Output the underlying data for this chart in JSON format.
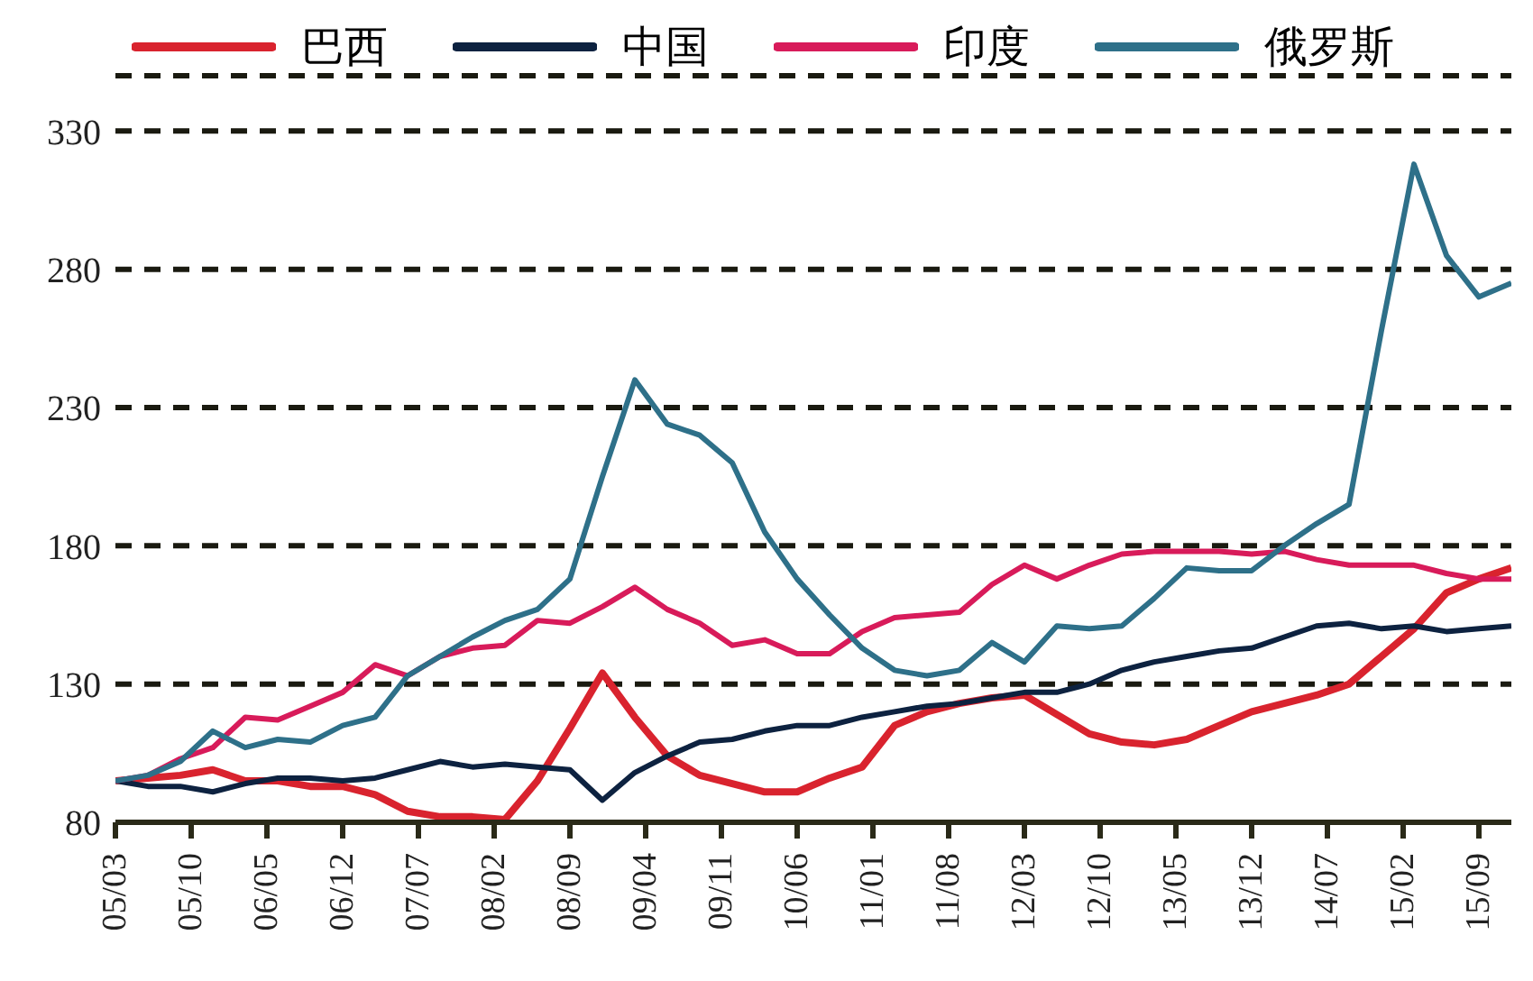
{
  "chart_data": {
    "type": "line",
    "legend": "top",
    "grid": "y",
    "marker": "none",
    "line_style": "solid",
    "x": [
      "2005-03",
      "2005-06",
      "2005-09",
      "2005-12",
      "2006-03",
      "2006-06",
      "2006-09",
      "2006-12",
      "2007-03",
      "2007-06",
      "2007-09",
      "2007-12",
      "2008-03",
      "2008-06",
      "2008-09",
      "2008-12",
      "2009-03",
      "2009-06",
      "2009-09",
      "2009-12",
      "2010-03",
      "2010-06",
      "2010-09",
      "2010-12",
      "2011-03",
      "2011-06",
      "2011-09",
      "2011-12",
      "2012-03",
      "2012-06",
      "2012-09",
      "2012-12",
      "2013-03",
      "2013-06",
      "2013-09",
      "2013-12",
      "2014-03",
      "2014-06",
      "2014-09",
      "2014-12",
      "2015-03",
      "2015-06",
      "2015-09",
      "2015-12"
    ],
    "xlim": [
      "2005-03",
      "2015-12"
    ],
    "xticks": [
      {
        "value": "2005-03",
        "label": "05/03"
      },
      {
        "value": "2005-10",
        "label": "05/10"
      },
      {
        "value": "2006-05",
        "label": "06/05"
      },
      {
        "value": "2006-12",
        "label": "06/12"
      },
      {
        "value": "2007-07",
        "label": "07/07"
      },
      {
        "value": "2008-02",
        "label": "08/02"
      },
      {
        "value": "2008-09",
        "label": "08/09"
      },
      {
        "value": "2009-04",
        "label": "09/04"
      },
      {
        "value": "2009-11",
        "label": "09/11"
      },
      {
        "value": "2010-06",
        "label": "10/06"
      },
      {
        "value": "2011-01",
        "label": "11/01"
      },
      {
        "value": "2011-08",
        "label": "11/08"
      },
      {
        "value": "2012-03",
        "label": "12/03"
      },
      {
        "value": "2012-10",
        "label": "12/10"
      },
      {
        "value": "2013-05",
        "label": "13/05"
      },
      {
        "value": "2013-12",
        "label": "13/12"
      },
      {
        "value": "2014-07",
        "label": "14/07"
      },
      {
        "value": "2015-02",
        "label": "15/02"
      },
      {
        "value": "2015-09",
        "label": "15/09"
      }
    ],
    "ylim": [
      80,
      350
    ],
    "yticks": [
      80,
      130,
      180,
      230,
      280,
      330
    ],
    "series": [
      {
        "name": "巴西",
        "color": "#d9232e",
        "values": [
          95,
          96,
          97,
          99,
          95,
          95,
          93,
          93,
          90,
          84,
          82,
          82,
          81,
          95,
          114,
          134,
          118,
          104,
          97,
          94,
          91,
          91,
          96,
          100,
          115,
          120,
          123,
          125,
          126,
          119,
          112,
          109,
          108,
          110,
          115,
          120,
          123,
          126,
          130,
          140,
          150,
          163,
          168,
          172
        ]
      },
      {
        "name": "中国",
        "color": "#0d2240",
        "values": [
          95,
          93,
          93,
          91,
          94,
          96,
          96,
          95,
          96,
          99,
          102,
          100,
          101,
          100,
          99,
          88,
          98,
          104,
          109,
          110,
          113,
          115,
          115,
          118,
          120,
          122,
          123,
          125,
          127,
          127,
          130,
          135,
          138,
          140,
          142,
          143,
          147,
          151,
          152,
          150,
          151,
          149,
          150,
          151
        ]
      },
      {
        "name": "印度",
        "color": "#d81b5a",
        "values": [
          95,
          97,
          103,
          107,
          118,
          117,
          122,
          127,
          137,
          133,
          140,
          143,
          144,
          153,
          152,
          158,
          165,
          157,
          152,
          144,
          146,
          141,
          141,
          149,
          154,
          155,
          156,
          166,
          173,
          168,
          173,
          177,
          178,
          178,
          178,
          177,
          178,
          175,
          173,
          173,
          173,
          170,
          168,
          168
        ]
      },
      {
        "name": "俄罗斯",
        "color": "#2e7089",
        "values": [
          95,
          97,
          102,
          113,
          107,
          110,
          109,
          115,
          118,
          133,
          140,
          147,
          153,
          157,
          168,
          205,
          240,
          224,
          220,
          210,
          185,
          168,
          155,
          143,
          135,
          133,
          135,
          145,
          138,
          151,
          150,
          151,
          161,
          172,
          171,
          171,
          180,
          188,
          195,
          258,
          318,
          285,
          270,
          275
        ]
      }
    ]
  }
}
